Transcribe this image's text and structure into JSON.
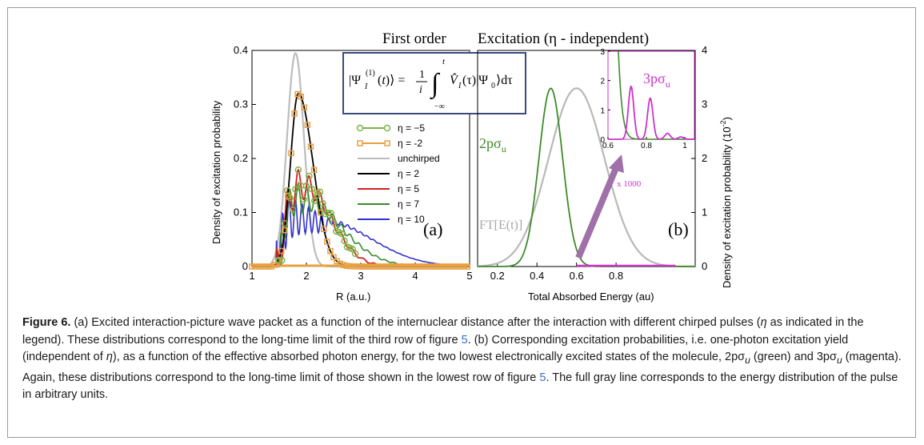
{
  "figure": {
    "header_left": "First order",
    "header_right": "Excitation (η - independent)",
    "equation": "|Ψ_I^(1)(t)⟩ = (1/i) ∫_{−∞}^{t} V̂_I(τ)|Ψ₀⟩dτ",
    "left_panel": {
      "label": "(a)",
      "xlabel": "R (a.u.)",
      "ylabel": "Density of excitation probability",
      "xticks": [
        "1",
        "2",
        "3",
        "4",
        "5"
      ],
      "yticks": [
        "0",
        "0.1",
        "0.2",
        "0.3",
        "0.4"
      ]
    },
    "right_panel": {
      "label": "(b)",
      "xlabel": "Total Absorbed Energy (au)",
      "ylabel": "Density of excitation probability  (10",
      "ylabel_exp": "-2",
      "ylabel_close": ")",
      "xticks": [
        "0.2",
        "0.4",
        "0.6",
        "0.8"
      ],
      "yticks": [
        "0",
        "1",
        "2",
        "3",
        "4"
      ],
      "label_2p_main": "2pσ",
      "label_2p_sub": "u",
      "label_3p_main": "3pσ",
      "label_3p_sub": "u",
      "ft_label": "FT[E(t)]",
      "multiplier": "x 1000",
      "inset": {
        "xticks": [
          "0.6",
          "0.8",
          "1"
        ],
        "yticks": [
          "0",
          "1",
          "2",
          "3"
        ]
      }
    }
  },
  "chart_data": [
    {
      "type": "line",
      "xlabel": "R (a.u.)",
      "ylabel": "Density of excitation probability",
      "xlim": [
        1,
        5
      ],
      "ylim": [
        0,
        0.4
      ],
      "legend": "center-right",
      "series": [
        {
          "name": "η = −5",
          "color": "#7ab648",
          "marker": "circle",
          "peak_x": 1.85,
          "peak_y": 0.183
        },
        {
          "name": "η = -2",
          "color": "#e8a040",
          "marker": "square",
          "peak_x": 1.85,
          "peak_y": 0.32
        },
        {
          "name": "unchirped",
          "color": "#bdbdbd",
          "peak_x": 1.8,
          "peak_y": 0.395
        },
        {
          "name": "η = 2",
          "color": "#000000",
          "peak_x": 1.85,
          "peak_y": 0.32
        },
        {
          "name": "η = 5",
          "color": "#d42020",
          "peak_x": 1.85,
          "peak_y": 0.183
        },
        {
          "name": "η = 7",
          "color": "#3a8a2a",
          "peak_x": 1.85,
          "peak_y": 0.15
        },
        {
          "name": "η = 10",
          "color": "#3333cc",
          "peak_x": 1.68,
          "peak_y": 0.12
        }
      ]
    },
    {
      "type": "line",
      "xlabel": "Total Absorbed Energy (au)",
      "ylabel": "Density of excitation probability (10^-2)",
      "xlim": [
        0.1,
        1.2
      ],
      "ylim": [
        0,
        4
      ],
      "series": [
        {
          "name": "2pσu",
          "color": "#3f8a2a",
          "center": 0.47,
          "peak": 3.3
        },
        {
          "name": "FT[E(t)]",
          "color": "#b8b8b8",
          "center": 0.6,
          "peak": 3.3
        }
      ],
      "inset": {
        "xlim": [
          0.6,
          1.05
        ],
        "ylim": [
          0,
          3
        ],
        "series": [
          {
            "name": "2pσu",
            "color": "#3f8a2a"
          },
          {
            "name": "3pσu",
            "color": "#cc33cc",
            "peaks": [
              [
                0.72,
                1.8
              ],
              [
                0.82,
                1.4
              ],
              [
                0.91,
                0.2
              ],
              [
                0.98,
                0.08
              ]
            ]
          }
        ]
      }
    }
  ],
  "caption": {
    "label": "Figure 6.",
    "part1": " (a) Excited interaction-picture wave packet as a function of the internuclear distance after the interaction with different chirped pulses (",
    "eta1": "η",
    "part2": " as indicated in the legend). These distributions correspond to the long-time limit of the third row of figure ",
    "ref1": "5",
    "part3": ". (b) Corresponding excitation probabilities, i.e. one-photon excitation yield (independent of ",
    "eta2": "η",
    "part4": "), as a function of the effective absorbed photon energy, for the two lowest electronically excited states of the molecule, 2pσ",
    "sub1": "u",
    "part5": " (green) and 3pσ",
    "sub2": "u",
    "part6": " (magenta). Again, these distributions correspond to the long-time limit of those shown in the lowest row of figure ",
    "ref2": "5",
    "part7": ". The full gray line corresponds to the energy distribution of the pulse in arbitrary units."
  }
}
